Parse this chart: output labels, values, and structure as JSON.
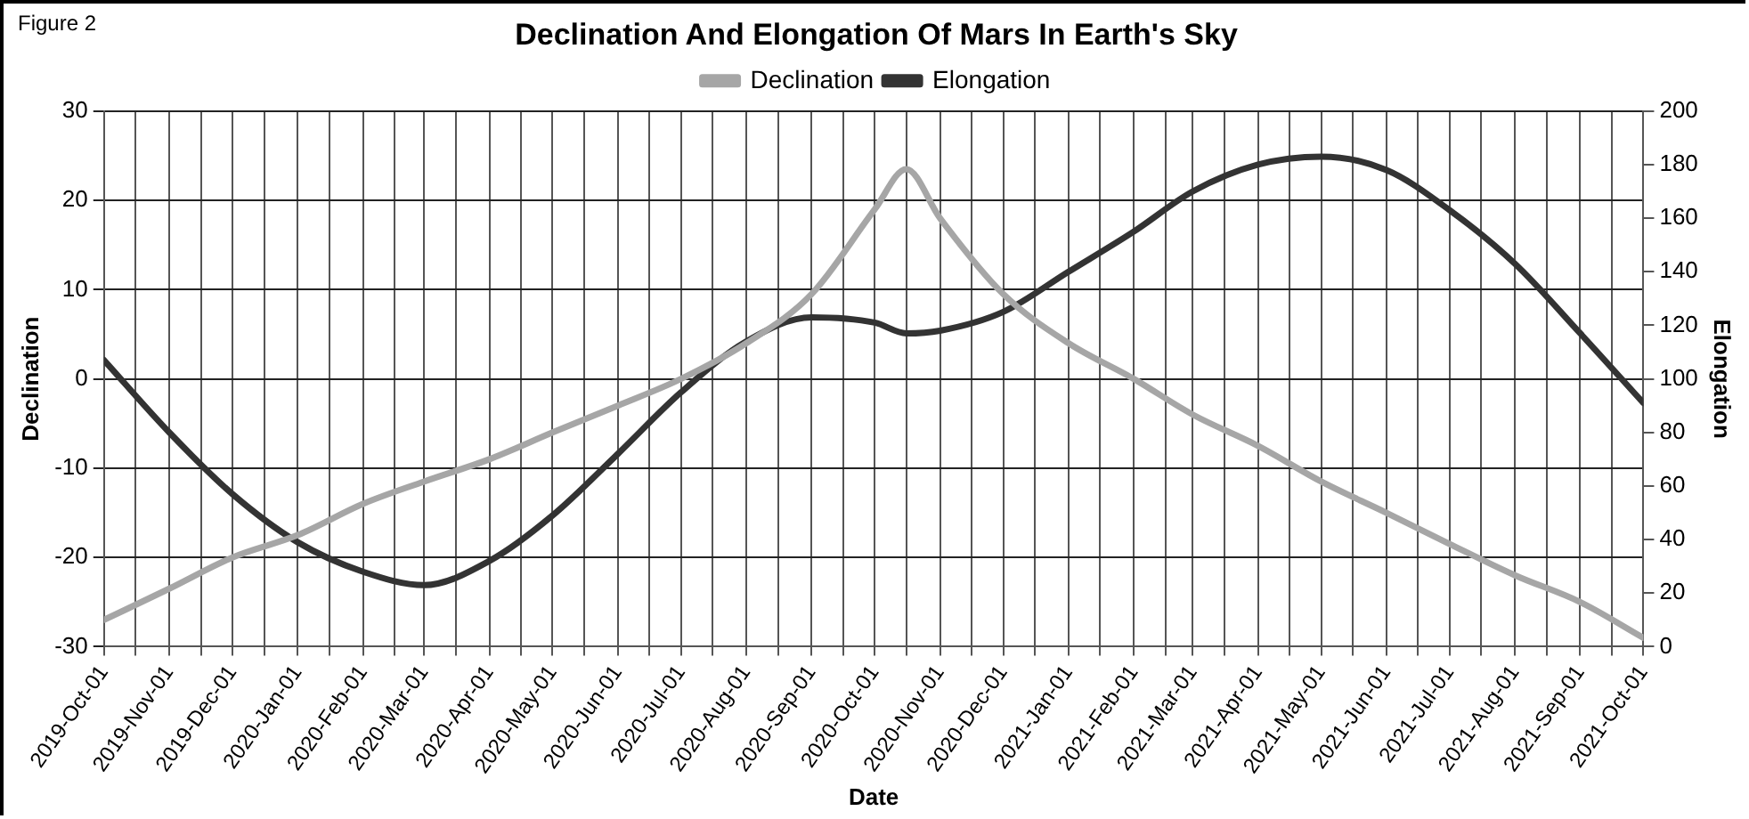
{
  "chart_data": {
    "type": "line",
    "title": "Declination And Elongation Of Mars In Earth's Sky",
    "xlabel": "Date",
    "ylabel": "Declination",
    "y2label": "Elongation",
    "annotations": [
      "Figure 2"
    ],
    "x": [
      "2019-10-01",
      "2019-11-01",
      "2019-12-01",
      "2020-01-01",
      "2020-02-01",
      "2020-03-01",
      "2020-04-01",
      "2020-05-01",
      "2020-06-01",
      "2020-07-01",
      "2020-08-01",
      "2020-09-01",
      "2020-10-01",
      "2020-10-16",
      "2020-11-01",
      "2020-12-01",
      "2021-01-01",
      "2021-02-01",
      "2021-03-01",
      "2021-04-01",
      "2021-05-01",
      "2021-06-01",
      "2021-07-01",
      "2021-08-01",
      "2021-09-01",
      "2021-10-01"
    ],
    "series": [
      {
        "name": "Declination",
        "color": "#a6a6a6",
        "values": [
          -27,
          -23.5,
          -20,
          -17.5,
          -14,
          -11.5,
          -9,
          -6,
          -3,
          0,
          4,
          9.5,
          19,
          23.5,
          18,
          9.5,
          4,
          0,
          -4,
          -7.5,
          -11.5,
          -15,
          -18.5,
          -22,
          -25,
          -29
        ]
      },
      {
        "name": "Elongation",
        "color": "#333333",
        "axis": "y2",
        "values": [
          107,
          80,
          57,
          39,
          28,
          23,
          32,
          49,
          72,
          95,
          114,
          123,
          121,
          117,
          118,
          125,
          140,
          155,
          170,
          180,
          183,
          178,
          163,
          143,
          117,
          91
        ]
      }
    ],
    "xlim": [
      "2019-10-01",
      "2021-10-01"
    ],
    "xticks": [
      {
        "value": "2019-10-01",
        "label": "2019-Oct-01"
      },
      {
        "value": "2019-10-16",
        "label": null
      },
      {
        "value": "2019-11-01",
        "label": "2019-Nov-01"
      },
      {
        "value": "2019-11-16",
        "label": null
      },
      {
        "value": "2019-12-01",
        "label": "2019-Dec-01"
      },
      {
        "value": "2019-12-16",
        "label": null
      },
      {
        "value": "2020-01-01",
        "label": "2020-Jan-01"
      },
      {
        "value": "2020-01-16",
        "label": null
      },
      {
        "value": "2020-02-01",
        "label": "2020-Feb-01"
      },
      {
        "value": "2020-02-16",
        "label": null
      },
      {
        "value": "2020-03-01",
        "label": "2020-Mar-01"
      },
      {
        "value": "2020-03-16",
        "label": null
      },
      {
        "value": "2020-04-01",
        "label": "2020-Apr-01"
      },
      {
        "value": "2020-04-16",
        "label": null
      },
      {
        "value": "2020-05-01",
        "label": "2020-May-01"
      },
      {
        "value": "2020-05-16",
        "label": null
      },
      {
        "value": "2020-06-01",
        "label": "2020-Jun-01"
      },
      {
        "value": "2020-06-16",
        "label": null
      },
      {
        "value": "2020-07-01",
        "label": "2020-Jul-01"
      },
      {
        "value": "2020-07-16",
        "label": null
      },
      {
        "value": "2020-08-01",
        "label": "2020-Aug-01"
      },
      {
        "value": "2020-08-16",
        "label": null
      },
      {
        "value": "2020-09-01",
        "label": "2020-Sep-01"
      },
      {
        "value": "2020-09-16",
        "label": null
      },
      {
        "value": "2020-10-01",
        "label": "2020-Oct-01"
      },
      {
        "value": "2020-10-16",
        "label": null
      },
      {
        "value": "2020-11-01",
        "label": "2020-Nov-01"
      },
      {
        "value": "2020-11-16",
        "label": null
      },
      {
        "value": "2020-12-01",
        "label": "2020-Dec-01"
      },
      {
        "value": "2020-12-16",
        "label": null
      },
      {
        "value": "2021-01-01",
        "label": "2021-Jan-01"
      },
      {
        "value": "2021-01-16",
        "label": null
      },
      {
        "value": "2021-02-01",
        "label": "2021-Feb-01"
      },
      {
        "value": "2021-02-16",
        "label": null
      },
      {
        "value": "2021-03-01",
        "label": "2021-Mar-01"
      },
      {
        "value": "2021-03-16",
        "label": null
      },
      {
        "value": "2021-04-01",
        "label": "2021-Apr-01"
      },
      {
        "value": "2021-04-16",
        "label": null
      },
      {
        "value": "2021-05-01",
        "label": "2021-May-01"
      },
      {
        "value": "2021-05-16",
        "label": null
      },
      {
        "value": "2021-06-01",
        "label": "2021-Jun-01"
      },
      {
        "value": "2021-06-16",
        "label": null
      },
      {
        "value": "2021-07-01",
        "label": "2021-Jul-01"
      },
      {
        "value": "2021-07-16",
        "label": null
      },
      {
        "value": "2021-08-01",
        "label": "2021-Aug-01"
      },
      {
        "value": "2021-08-16",
        "label": null
      },
      {
        "value": "2021-09-01",
        "label": "2021-Sep-01"
      },
      {
        "value": "2021-09-16",
        "label": null
      },
      {
        "value": "2021-10-01",
        "label": "2021-Oct-01"
      }
    ],
    "ylim": [
      -30,
      30
    ],
    "yticks": [
      -30,
      -20,
      -10,
      0,
      10,
      20,
      30
    ],
    "y2lim": [
      0,
      200
    ],
    "y2ticks": [
      0,
      20,
      40,
      60,
      80,
      100,
      120,
      140,
      160,
      180,
      200
    ],
    "grid": true,
    "legend": "top",
    "marker": "none",
    "line_style": "solid"
  }
}
